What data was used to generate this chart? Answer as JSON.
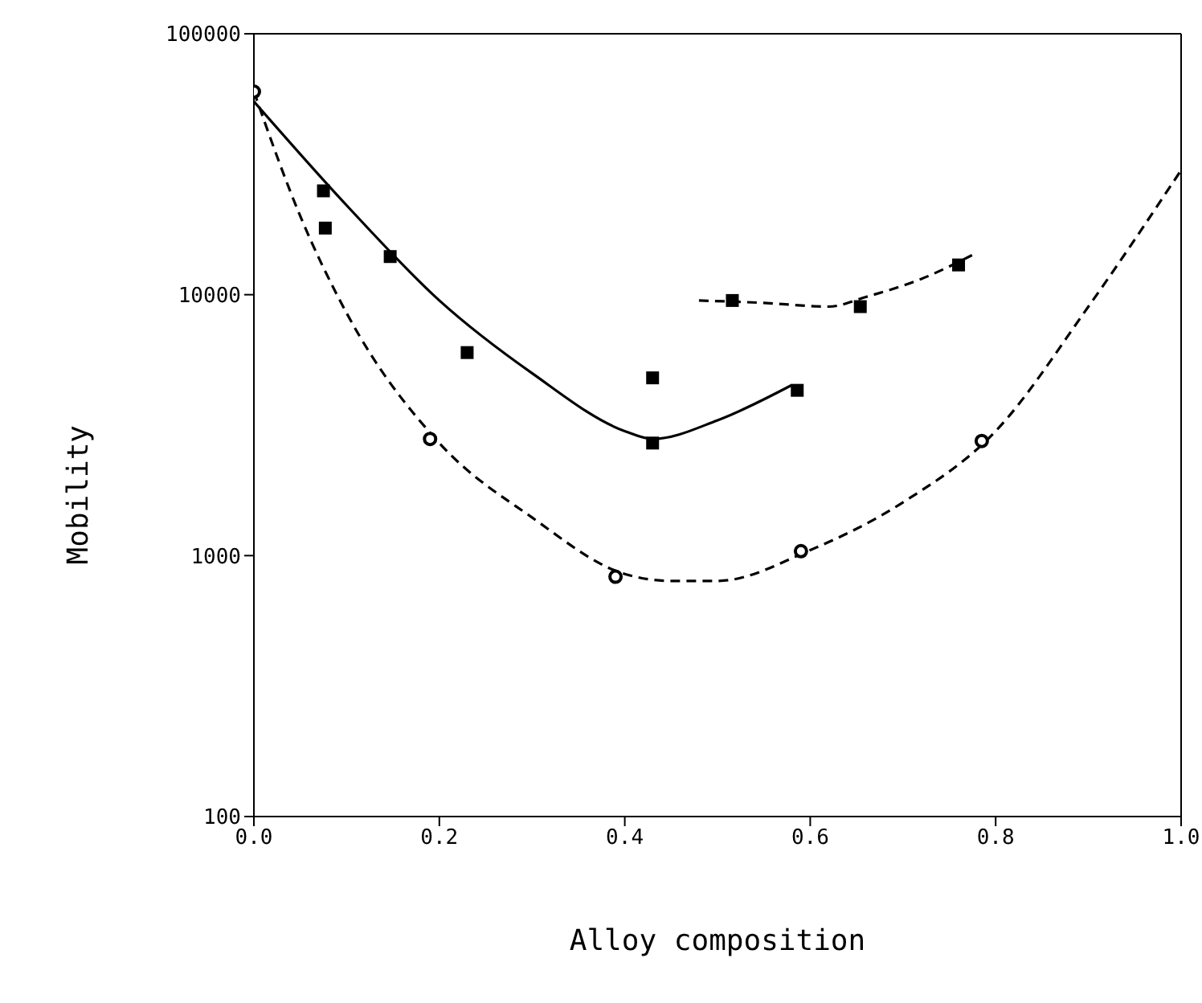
{
  "chart_data": {
    "type": "scatter",
    "xlabel": "Alloy composition",
    "ylabel": "Mobility",
    "log": "y",
    "xlim": [
      0,
      1
    ],
    "xticks": [
      {
        "value": 0,
        "label": "0.0"
      },
      {
        "value": 0.2,
        "label": "0.2"
      },
      {
        "value": 0.4,
        "label": "0.4"
      },
      {
        "value": 0.6,
        "label": "0.6"
      },
      {
        "value": 0.8,
        "label": "0.8"
      },
      {
        "value": 1,
        "label": "1.0"
      }
    ],
    "ylim": [
      100,
      100000
    ],
    "yticks": [
      100,
      1000,
      10000,
      100000
    ],
    "grid": false,
    "legend": false,
    "series": [
      {
        "marker": "square",
        "color": "#000000",
        "x": [
          0.075,
          0.077,
          0.147,
          0.23,
          0.43,
          0.43,
          0.586
        ],
        "values": [
          25000,
          18000,
          14000,
          6000,
          2700,
          4800,
          4300
        ]
      },
      {
        "marker": "square",
        "color": "#000000",
        "x": [
          0.516,
          0.654,
          0.76
        ],
        "values": [
          9500,
          9000,
          13000
        ]
      },
      {
        "marker": "circle",
        "color": "#000000",
        "x": [
          0.0,
          0.19,
          0.39,
          0.59,
          0.785
        ],
        "values": [
          60000,
          2800,
          830,
          1040,
          2750
        ]
      },
      {
        "type": "line",
        "marker": "none",
        "line_style": "solid",
        "color": "#000000",
        "x": [
          0,
          0.1,
          0.2,
          0.3,
          0.4,
          0.43,
          0.5,
          0.58
        ],
        "values": [
          55000,
          22000,
          9500,
          5000,
          3000,
          2800,
          3300,
          4500
        ]
      },
      {
        "type": "line",
        "marker": "none",
        "line_style": "dashed",
        "color": "#000000",
        "x": [
          0,
          0.05,
          0.1,
          0.2,
          0.3,
          0.4,
          0.45,
          0.5,
          0.6,
          0.7,
          0.8,
          0.9,
          1.0
        ],
        "values": [
          60000,
          20000,
          8500,
          2700,
          1400,
          850,
          800,
          800,
          1050,
          1600,
          3000,
          9000,
          30000
        ]
      },
      {
        "type": "line",
        "marker": "none",
        "line_style": "dashed",
        "color": "#000000",
        "x": [
          0.48,
          0.55,
          0.62,
          0.66,
          0.72,
          0.78
        ],
        "values": [
          9500,
          9300,
          9000,
          9800,
          11500,
          14500
        ]
      }
    ]
  }
}
